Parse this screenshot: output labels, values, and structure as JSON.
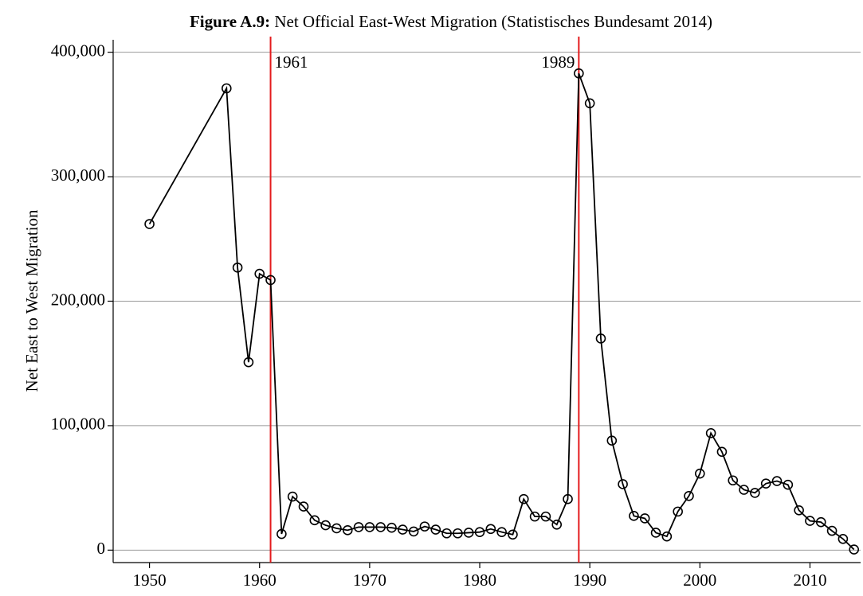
{
  "chart_data": {
    "type": "line",
    "title_label": "Figure A.9:",
    "title": "Net Official East-West Migration (Statistisches Bundesamt 2014)",
    "y_label": "Net East to West Migration",
    "x": [
      1950,
      1957,
      1958,
      1959,
      1960,
      1961,
      1962,
      1963,
      1964,
      1965,
      1966,
      1967,
      1968,
      1969,
      1970,
      1971,
      1972,
      1973,
      1974,
      1975,
      1976,
      1977,
      1978,
      1979,
      1980,
      1981,
      1982,
      1983,
      1984,
      1985,
      1986,
      1987,
      1988,
      1989,
      1990,
      1991,
      1992,
      1993,
      1994,
      1995,
      1996,
      1997,
      1998,
      1999,
      2000,
      2001,
      2002,
      2003,
      2004,
      2005,
      2006,
      2007,
      2008,
      2009,
      2010,
      2011,
      2012,
      2013,
      2014
    ],
    "series": [
      {
        "color": "#000000",
        "values": [
          262000,
          371000,
          227000,
          151000,
          222000,
          217000,
          13000,
          43000,
          35000,
          24000,
          20000,
          17500,
          16000,
          18500,
          18500,
          18500,
          18000,
          16500,
          15000,
          19000,
          16500,
          13500,
          13500,
          14000,
          14500,
          17000,
          14500,
          12500,
          41000,
          27000,
          27000,
          20500,
          41000,
          383000,
          359000,
          170000,
          88000,
          53000,
          27500,
          25500,
          14000,
          11000,
          31000,
          43500,
          61500,
          94000,
          79000,
          56000,
          48500,
          46000,
          53500,
          55500,
          52500,
          32000,
          23500,
          22500,
          15500,
          9000,
          500
        ]
      }
    ],
    "xlim": [
      1946.7,
      2014.6
    ],
    "ylim": [
      -10000,
      410000
    ],
    "xticks": [
      1950,
      1960,
      1970,
      1980,
      1990,
      2000,
      2010
    ],
    "yticks": [
      0,
      {
        "value": 100000,
        "label": "100,000"
      },
      {
        "value": 200000,
        "label": "200,000"
      },
      {
        "value": 300000,
        "label": "300,000"
      },
      {
        "value": 400000,
        "label": "400,000"
      }
    ],
    "grid": true,
    "annotations": [
      {
        "x": 1961,
        "label": "1961",
        "side": "right",
        "color": "#e41a1c"
      },
      {
        "x": 1989,
        "label": "1989",
        "side": "left",
        "color": "#e41a1c"
      }
    ]
  }
}
